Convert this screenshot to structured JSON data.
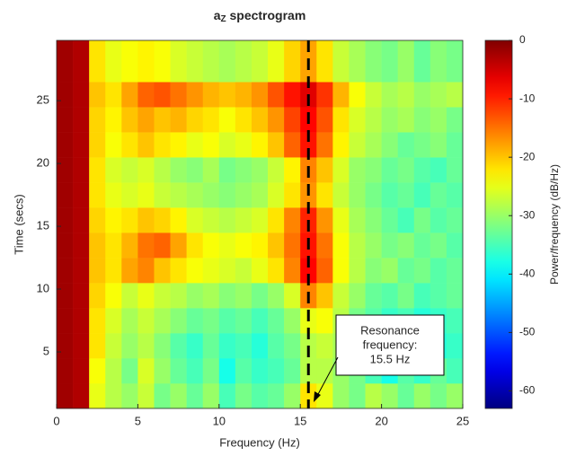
{
  "chart_data": {
    "type": "heatmap",
    "title": {
      "main": "a",
      "sub": "Z",
      "rest": " spectrogram"
    },
    "x_label": "Frequency (Hz)",
    "y_label": "Time (secs)",
    "colorbar_label": "Power/frequency (dB/Hz)",
    "colormap": "jet",
    "x": [
      0.5,
      1.5,
      2.5,
      3.5,
      4.5,
      5.5,
      6.5,
      7.5,
      8.5,
      9.5,
      10.5,
      11.5,
      12.5,
      13.5,
      14.5,
      15.5,
      16.5,
      17.5,
      18.5,
      19.5,
      20.5,
      21.5,
      22.5,
      23.5,
      24.5
    ],
    "y": [
      1.5,
      3.5,
      5.5,
      7.5,
      9.5,
      11.5,
      13.5,
      15.5,
      17.5,
      19.5,
      21.5,
      23.5,
      25.5,
      27.5
    ],
    "z": [
      [
        -2,
        -3,
        -25,
        -28,
        -30,
        -27,
        -32,
        -30,
        -33,
        -30,
        -35,
        -32,
        -34,
        -33,
        -30,
        -22,
        -25,
        -30,
        -32,
        -28,
        -30,
        -33,
        -30,
        -32,
        -30
      ],
      [
        -2,
        -3,
        -24,
        -28,
        -32,
        -26,
        -30,
        -33,
        -35,
        -32,
        -38,
        -34,
        -36,
        -35,
        -33,
        -28,
        -28,
        -30,
        -32,
        -35,
        -38,
        -34,
        -36,
        -33,
        -35
      ],
      [
        -2,
        -3,
        -22,
        -27,
        -30,
        -28,
        -31,
        -34,
        -36,
        -33,
        -36,
        -35,
        -37,
        -34,
        -32,
        -28,
        -27,
        -29,
        -33,
        -36,
        -34,
        -38,
        -35,
        -37,
        -36
      ],
      [
        -2,
        -3,
        -22,
        -26,
        -29,
        -27,
        -29,
        -31,
        -33,
        -32,
        -34,
        -33,
        -35,
        -33,
        -30,
        -25,
        -24,
        -28,
        -32,
        -34,
        -36,
        -35,
        -37,
        -36,
        -35
      ],
      [
        -2,
        -3,
        -21,
        -24,
        -27,
        -25,
        -27,
        -28,
        -30,
        -29,
        -31,
        -30,
        -32,
        -30,
        -26,
        -16,
        -20,
        -27,
        -30,
        -33,
        -34,
        -32,
        -35,
        -34,
        -33
      ],
      [
        -2,
        -3,
        -20,
        -22,
        -18,
        -16,
        -20,
        -22,
        -24,
        -25,
        -26,
        -27,
        -25,
        -22,
        -16,
        -8,
        -14,
        -24,
        -28,
        -31,
        -30,
        -33,
        -32,
        -34,
        -33
      ],
      [
        -2,
        -3,
        -20,
        -22,
        -19,
        -15,
        -14,
        -18,
        -22,
        -24,
        -25,
        -24,
        -23,
        -20,
        -15,
        -9,
        -15,
        -24,
        -28,
        -30,
        -32,
        -31,
        -33,
        -32,
        -34
      ],
      [
        -2,
        -3,
        -21,
        -23,
        -22,
        -20,
        -21,
        -23,
        -26,
        -27,
        -28,
        -27,
        -26,
        -22,
        -16,
        -10,
        -17,
        -25,
        -29,
        -31,
        -33,
        -35,
        -32,
        -34,
        -33
      ],
      [
        -2,
        -3,
        -22,
        -25,
        -26,
        -25,
        -27,
        -28,
        -29,
        -30,
        -31,
        -30,
        -29,
        -26,
        -22,
        -17,
        -22,
        -27,
        -30,
        -32,
        -34,
        -33,
        -35,
        -33,
        -34
      ],
      [
        -2,
        -3,
        -22,
        -26,
        -27,
        -26,
        -28,
        -30,
        -31,
        -29,
        -32,
        -31,
        -30,
        -27,
        -23,
        -16,
        -20,
        -26,
        -30,
        -31,
        -33,
        -32,
        -34,
        -35,
        -33
      ],
      [
        -2,
        -3,
        -21,
        -24,
        -22,
        -20,
        -22,
        -23,
        -25,
        -24,
        -26,
        -25,
        -23,
        -20,
        -14,
        -9,
        -15,
        -23,
        -27,
        -29,
        -31,
        -33,
        -32,
        -31,
        -33
      ],
      [
        -2,
        -3,
        -21,
        -23,
        -20,
        -18,
        -20,
        -19,
        -21,
        -22,
        -24,
        -22,
        -20,
        -17,
        -12,
        -8,
        -13,
        -22,
        -26,
        -28,
        -30,
        -29,
        -31,
        -30,
        -32
      ],
      [
        -2,
        -3,
        -20,
        -22,
        -18,
        -14,
        -13,
        -15,
        -17,
        -19,
        -20,
        -19,
        -17,
        -13,
        -9,
        -6,
        -11,
        -19,
        -24,
        -27,
        -29,
        -28,
        -30,
        -29,
        -28
      ],
      [
        -2,
        -3,
        -22,
        -25,
        -24,
        -23,
        -24,
        -26,
        -27,
        -28,
        -29,
        -28,
        -27,
        -25,
        -21,
        -18,
        -22,
        -27,
        -29,
        -31,
        -32,
        -30,
        -33,
        -31,
        -32
      ]
    ],
    "xlim": [
      0,
      25
    ],
    "xticks": [
      0,
      5,
      10,
      15,
      20,
      25
    ],
    "ylim": [
      0.5,
      29.8
    ],
    "yticks": [
      5,
      10,
      15,
      20,
      25
    ],
    "clim": [
      -63,
      0
    ],
    "cticks": [
      0,
      -10,
      -20,
      -30,
      -40,
      -50,
      -60
    ],
    "resonance_line": 15.5,
    "annotation": [
      "Resonance",
      "frequency:",
      "15.5 Hz"
    ]
  }
}
